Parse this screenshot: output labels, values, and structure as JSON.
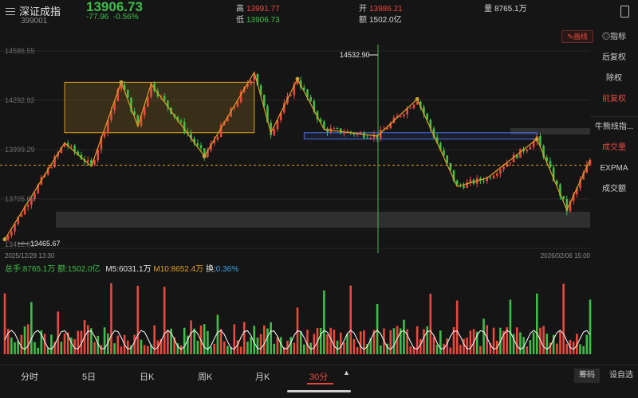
{
  "header": {
    "name": "深证成指",
    "code": "399001",
    "price": "13906.73",
    "change": "-77.96",
    "change_pct": "-0.56%",
    "high_label": "高",
    "high": "13991.77",
    "low_label": "低",
    "low": "13906.73",
    "open_label": "开",
    "open": "13986.21",
    "amount_label": "额",
    "amount": "1502.0亿",
    "volume_label": "量",
    "volume": "8765.1万"
  },
  "toolbar": {
    "draw_line": "画线"
  },
  "right_panel": {
    "indicator": "指标",
    "items": [
      "后复权",
      "除权",
      "前复权"
    ],
    "overlays": [
      "牛熊线指...",
      "成交量",
      "EXPMA",
      "成交额"
    ]
  },
  "chart_data": {
    "type": "candlestick",
    "period": "30分",
    "y_ticks": [
      "14586.55",
      "14292.92",
      "13999.29",
      "13705.65",
      "13412.02"
    ],
    "ylim": [
      13412.02,
      14586.55
    ],
    "start_date": "2025/12/29 13:30",
    "end_date": "2026/02/06 15:00",
    "max_marker": "14532.90",
    "min_marker": "13465.67",
    "last_price": 13906.73,
    "zigzag": [
      [
        0,
        13465.67
      ],
      [
        18,
        14040
      ],
      [
        26,
        13900
      ],
      [
        35,
        14400
      ],
      [
        40,
        14140
      ],
      [
        44,
        14390
      ],
      [
        60,
        13960
      ],
      [
        75,
        14460
      ],
      [
        80,
        14100
      ],
      [
        88,
        14420
      ],
      [
        96,
        14120
      ],
      [
        112,
        14080
      ],
      [
        124,
        14300
      ],
      [
        136,
        13780
      ],
      [
        145,
        13830
      ],
      [
        160,
        14062
      ],
      [
        169,
        13640
      ],
      [
        176,
        13940
      ]
    ],
    "boxes": [
      {
        "from": [
          18,
          14400
        ],
        "to": [
          75,
          14100
        ],
        "color": "#e0a020"
      },
      {
        "from": [
          90,
          14100
        ],
        "to": [
          160,
          14062
        ],
        "color": "#4a6fe0"
      }
    ],
    "volume_legend": {
      "total": "总手:8765.1万",
      "amount": "额:1502.0亿",
      "m5": "M5:6031.1万",
      "m10": "M10:8652.4万",
      "turnover_label": "换:",
      "turnover": "0.36%"
    },
    "colors": {
      "up": "#e84a3f",
      "down": "#3fbf4a",
      "zigzag": "#e0a020",
      "ma": "#ffffff"
    }
  },
  "tabs": [
    "分时",
    "5日",
    "日K",
    "周K",
    "月K",
    "30分"
  ],
  "active_tab": "30分",
  "buttons": {
    "chips": "筹码",
    "settings": "设自选"
  }
}
